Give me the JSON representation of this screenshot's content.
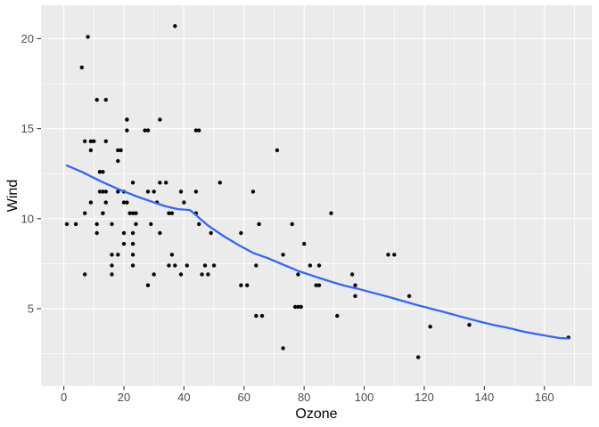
{
  "chart_data": {
    "type": "scatter",
    "title": "",
    "xlabel": "Ozone",
    "ylabel": "Wind",
    "x_ticks": [
      0,
      20,
      40,
      60,
      80,
      100,
      120,
      140,
      160
    ],
    "x_minor_ticks": [
      10,
      30,
      50,
      70,
      90,
      110,
      130,
      150,
      170
    ],
    "y_ticks": [
      5,
      10,
      15,
      20
    ],
    "y_minor_ticks": [
      2.5,
      7.5,
      12.5,
      17.5
    ],
    "xlim": [
      -7.6,
      175.8
    ],
    "ylim": [
      0.7,
      21.85
    ],
    "grid": "on",
    "legend_position": "none",
    "series": [
      {
        "name": "observations",
        "geom": "point",
        "points": [
          [
            41,
            7.4
          ],
          [
            36,
            8
          ],
          [
            12,
            12.6
          ],
          [
            18,
            11.5
          ],
          [
            28,
            14.9
          ],
          [
            23,
            8.6
          ],
          [
            19,
            13.8
          ],
          [
            8,
            20.1
          ],
          [
            7,
            6.9
          ],
          [
            16,
            9.7
          ],
          [
            11,
            9.2
          ],
          [
            14,
            10.9
          ],
          [
            18,
            13.2
          ],
          [
            14,
            11.5
          ],
          [
            34,
            12
          ],
          [
            6,
            18.4
          ],
          [
            30,
            11.5
          ],
          [
            11,
            9.7
          ],
          [
            1,
            9.7
          ],
          [
            11,
            16.6
          ],
          [
            4,
            9.7
          ],
          [
            32,
            12
          ],
          [
            23,
            12
          ],
          [
            45,
            14.9
          ],
          [
            115,
            5.7
          ],
          [
            37,
            7.4
          ],
          [
            29,
            9.7
          ],
          [
            71,
            13.8
          ],
          [
            39,
            11.5
          ],
          [
            23,
            8
          ],
          [
            21,
            14.9
          ],
          [
            37,
            20.7
          ],
          [
            20,
            9.2
          ],
          [
            12,
            11.5
          ],
          [
            13,
            10.3
          ],
          [
            135,
            4.1
          ],
          [
            49,
            9.2
          ],
          [
            32,
            9.2
          ],
          [
            64,
            4.6
          ],
          [
            40,
            10.9
          ],
          [
            77,
            5.1
          ],
          [
            97,
            6.3
          ],
          [
            97,
            5.7
          ],
          [
            85,
            7.4
          ],
          [
            10,
            14.3
          ],
          [
            27,
            14.9
          ],
          [
            7,
            14.3
          ],
          [
            48,
            6.9
          ],
          [
            35,
            10.3
          ],
          [
            61,
            6.3
          ],
          [
            79,
            5.1
          ],
          [
            63,
            11.5
          ],
          [
            16,
            6.9
          ],
          [
            80,
            8.6
          ],
          [
            108,
            8
          ],
          [
            20,
            8.6
          ],
          [
            52,
            12
          ],
          [
            82,
            7.4
          ],
          [
            50,
            7.4
          ],
          [
            64,
            7.4
          ],
          [
            59,
            9.2
          ],
          [
            39,
            6.9
          ],
          [
            9,
            13.8
          ],
          [
            16,
            7.4
          ],
          [
            78,
            6.9
          ],
          [
            35,
            7.4
          ],
          [
            66,
            4.6
          ],
          [
            122,
            4
          ],
          [
            89,
            10.3
          ],
          [
            110,
            8
          ],
          [
            44,
            11.5
          ],
          [
            28,
            11.5
          ],
          [
            65,
            9.7
          ],
          [
            22,
            10.3
          ],
          [
            59,
            6.3
          ],
          [
            23,
            7.4
          ],
          [
            31,
            10.9
          ],
          [
            44,
            10.3
          ],
          [
            21,
            15.5
          ],
          [
            9,
            14.3
          ],
          [
            45,
            9.7
          ],
          [
            168,
            3.4
          ],
          [
            73,
            8
          ],
          [
            76,
            9.7
          ],
          [
            118,
            2.3
          ],
          [
            84,
            6.3
          ],
          [
            85,
            6.3
          ],
          [
            96,
            6.9
          ],
          [
            78,
            5.1
          ],
          [
            73,
            2.8
          ],
          [
            91,
            4.6
          ],
          [
            47,
            7.4
          ],
          [
            32,
            15.5
          ],
          [
            20,
            10.9
          ],
          [
            23,
            10.3
          ],
          [
            21,
            10.9
          ],
          [
            24,
            9.7
          ],
          [
            44,
            14.9
          ],
          [
            21,
            15.5
          ],
          [
            28,
            6.3
          ],
          [
            9,
            10.9
          ],
          [
            13,
            11.5
          ],
          [
            46,
            6.9
          ],
          [
            18,
            13.8
          ],
          [
            13,
            10.3
          ],
          [
            24,
            10.3
          ],
          [
            16,
            8
          ],
          [
            13,
            12.6
          ],
          [
            23,
            9.2
          ],
          [
            36,
            10.3
          ],
          [
            7,
            10.3
          ],
          [
            14,
            16.6
          ],
          [
            30,
            6.9
          ],
          [
            14,
            14.3
          ],
          [
            18,
            8
          ],
          [
            20,
            11.5
          ]
        ]
      },
      {
        "name": "loess-smooth",
        "geom": "line",
        "points": [
          [
            1,
            12.95
          ],
          [
            6,
            12.6
          ],
          [
            12,
            12.1
          ],
          [
            18,
            11.65
          ],
          [
            24,
            11.25
          ],
          [
            30,
            10.9
          ],
          [
            34,
            10.68
          ],
          [
            38,
            10.53
          ],
          [
            42,
            10.48
          ],
          [
            44,
            10.2
          ],
          [
            46,
            9.9
          ],
          [
            48,
            9.62
          ],
          [
            53,
            9.05
          ],
          [
            58,
            8.55
          ],
          [
            63,
            8.1
          ],
          [
            68,
            7.8
          ],
          [
            73,
            7.45
          ],
          [
            78,
            7.1
          ],
          [
            83,
            6.82
          ],
          [
            88,
            6.55
          ],
          [
            93,
            6.3
          ],
          [
            98,
            6.1
          ],
          [
            103,
            5.88
          ],
          [
            108,
            5.66
          ],
          [
            113,
            5.42
          ],
          [
            118,
            5.18
          ],
          [
            123,
            4.97
          ],
          [
            128,
            4.75
          ],
          [
            133,
            4.52
          ],
          [
            138,
            4.3
          ],
          [
            143,
            4.1
          ],
          [
            148,
            3.93
          ],
          [
            153,
            3.73
          ],
          [
            158,
            3.57
          ],
          [
            162,
            3.45
          ],
          [
            165,
            3.37
          ],
          [
            168,
            3.35
          ]
        ]
      }
    ],
    "colors": {
      "outer_bg": "#ffffff",
      "panel_bg": "#ebebeb",
      "grid": "#ffffff",
      "point": "#000000",
      "smooth": "#3366ff",
      "tick_mark": "#333333",
      "tick_text": "#4d4d4d",
      "axis_title_text": "#000000"
    }
  }
}
